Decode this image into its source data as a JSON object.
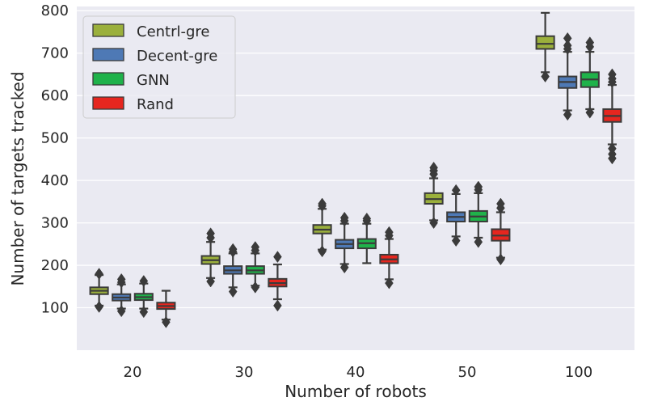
{
  "chart_data": {
    "type": "box",
    "xlabel": "Number of robots",
    "ylabel": "Number of targets tracked",
    "categories": [
      "20",
      "30",
      "40",
      "50",
      "100"
    ],
    "ylim": [
      0,
      810
    ],
    "yticks": [
      100,
      200,
      300,
      400,
      500,
      600,
      700,
      800
    ],
    "ytick_labels": [
      "100",
      "200",
      "300",
      "400",
      "500",
      "600",
      "700",
      "800"
    ],
    "grid": true,
    "legend_position": "top-left",
    "series": [
      {
        "name": "Centrl-gre",
        "color": "#9bb03c",
        "boxes": [
          {
            "whislo": 105,
            "q1": 132,
            "med": 140,
            "q3": 148,
            "whishi": 177,
            "fliers_low": [
              102
            ],
            "fliers_high": [
              180
            ]
          },
          {
            "whislo": 170,
            "q1": 203,
            "med": 212,
            "q3": 222,
            "whishi": 255,
            "fliers_low": [
              162
            ],
            "fliers_high": [
              265,
              275
            ]
          },
          {
            "whislo": 237,
            "q1": 275,
            "med": 284,
            "q3": 295,
            "whishi": 333,
            "fliers_low": [
              233
            ],
            "fliers_high": [
              340,
              345
            ]
          },
          {
            "whislo": 306,
            "q1": 345,
            "med": 356,
            "q3": 370,
            "whishi": 405,
            "fliers_low": [
              300
            ],
            "fliers_high": [
              415,
              423,
              430
            ]
          },
          {
            "whislo": 655,
            "q1": 710,
            "med": 722,
            "q3": 740,
            "whishi": 795,
            "fliers_low": [
              645
            ],
            "fliers_high": []
          }
        ]
      },
      {
        "name": "Decent-gre",
        "color": "#4e79b5",
        "boxes": [
          {
            "whislo": 98,
            "q1": 117,
            "med": 124,
            "q3": 132,
            "whishi": 155,
            "fliers_low": [
              92
            ],
            "fliers_high": [
              160,
              167
            ]
          },
          {
            "whislo": 148,
            "q1": 180,
            "med": 188,
            "q3": 198,
            "whishi": 228,
            "fliers_low": [
              138
            ],
            "fliers_high": [
              232,
              238
            ]
          },
          {
            "whislo": 203,
            "q1": 240,
            "med": 250,
            "q3": 260,
            "whishi": 298,
            "fliers_low": [
              195
            ],
            "fliers_high": [
              305,
              312
            ]
          },
          {
            "whislo": 268,
            "q1": 303,
            "med": 314,
            "q3": 325,
            "whishi": 368,
            "fliers_low": [
              258
            ],
            "fliers_high": [
              377
            ]
          },
          {
            "whislo": 565,
            "q1": 618,
            "med": 632,
            "q3": 645,
            "whishi": 703,
            "fliers_low": [
              555
            ],
            "fliers_high": [
              710,
              718,
              735
            ]
          }
        ]
      },
      {
        "name": "GNN",
        "color": "#1fb24a",
        "boxes": [
          {
            "whislo": 98,
            "q1": 118,
            "med": 125,
            "q3": 133,
            "whishi": 157,
            "fliers_low": [
              90
            ],
            "fliers_high": [
              163
            ]
          },
          {
            "whislo": 152,
            "q1": 180,
            "med": 188,
            "q3": 198,
            "whishi": 228,
            "fliers_low": [
              148
            ],
            "fliers_high": [
              235,
              243
            ]
          },
          {
            "whislo": 205,
            "q1": 240,
            "med": 252,
            "q3": 262,
            "whishi": 298,
            "fliers_low": [],
            "fliers_high": [
              305,
              310
            ]
          },
          {
            "whislo": 265,
            "q1": 303,
            "med": 315,
            "q3": 328,
            "whishi": 370,
            "fliers_low": [
              255
            ],
            "fliers_high": [
              378,
              385
            ]
          },
          {
            "whislo": 568,
            "q1": 620,
            "med": 638,
            "q3": 655,
            "whishi": 703,
            "fliers_low": [
              560
            ],
            "fliers_high": [
              715,
              725
            ]
          }
        ]
      },
      {
        "name": "Rand",
        "color": "#e6261f",
        "boxes": [
          {
            "whislo": 72,
            "q1": 97,
            "med": 104,
            "q3": 112,
            "whishi": 140,
            "fliers_low": [
              66
            ],
            "fliers_high": []
          },
          {
            "whislo": 120,
            "q1": 150,
            "med": 158,
            "q3": 168,
            "whishi": 202,
            "fliers_low": [
              105
            ],
            "fliers_high": [
              220
            ]
          },
          {
            "whislo": 167,
            "q1": 205,
            "med": 214,
            "q3": 225,
            "whishi": 262,
            "fliers_low": [
              158
            ],
            "fliers_high": [
              270,
              278
            ]
          },
          {
            "whislo": 218,
            "q1": 258,
            "med": 270,
            "q3": 285,
            "whishi": 325,
            "fliers_low": [
              214
            ],
            "fliers_high": [
              335,
              345
            ]
          },
          {
            "whislo": 485,
            "q1": 538,
            "med": 552,
            "q3": 568,
            "whishi": 625,
            "fliers_low": [
              475,
              462,
              452
            ],
            "fliers_high": [
              632,
              640,
              650
            ]
          }
        ]
      }
    ]
  }
}
